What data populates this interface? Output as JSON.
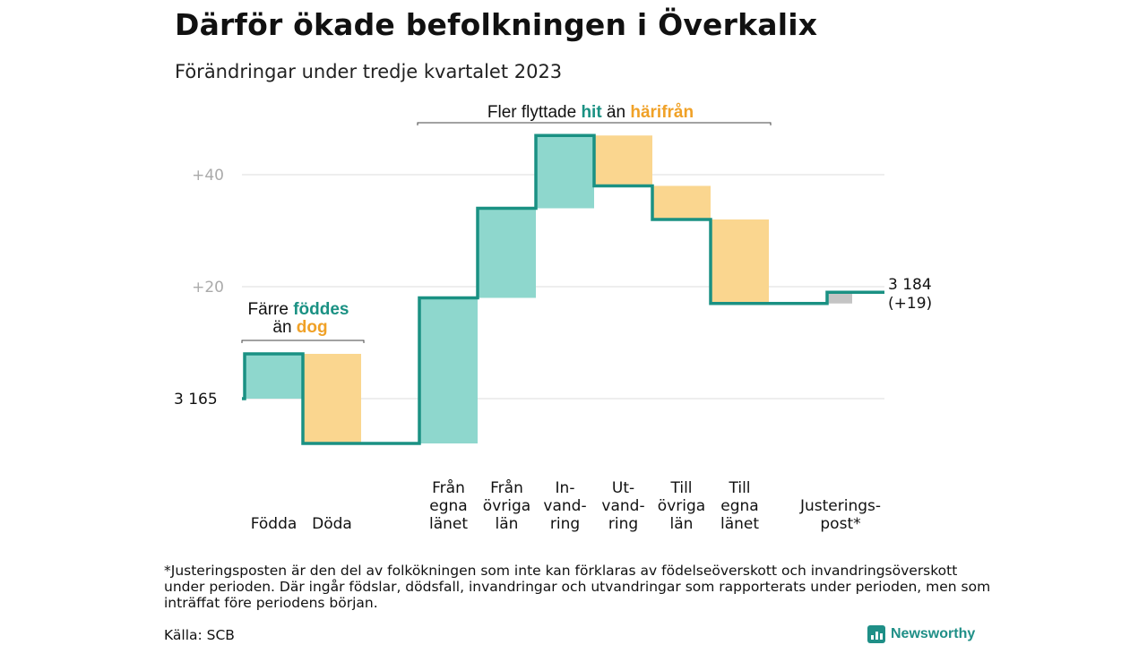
{
  "title": "Därför ökade befolkningen i Överkalix",
  "subtitle": "Förändringar under tredje kvartalet 2023",
  "chart_data": {
    "type": "waterfall",
    "start_value": 3165,
    "start_label": "3  165",
    "end_label_lines": [
      "3 184",
      "(+19)"
    ],
    "yticks": [
      {
        "value": 40,
        "label": "+40"
      },
      {
        "value": 20,
        "label": "+20"
      }
    ],
    "steps": [
      {
        "label_lines": [
          "Födda"
        ],
        "value": 8,
        "kind": "in"
      },
      {
        "label_lines": [
          "Döda"
        ],
        "value": -16,
        "kind": "out"
      },
      {
        "label_lines": [
          "Från",
          "egna",
          "länet"
        ],
        "value": 26,
        "kind": "in"
      },
      {
        "label_lines": [
          "Från",
          "övriga",
          "län"
        ],
        "value": 16,
        "kind": "in"
      },
      {
        "label_lines": [
          "In-",
          "vand-",
          "ring"
        ],
        "value": 13,
        "kind": "in"
      },
      {
        "label_lines": [
          "Ut-",
          "vand-",
          "ring"
        ],
        "value": -9,
        "kind": "out"
      },
      {
        "label_lines": [
          "Till",
          "övriga",
          "län"
        ],
        "value": -6,
        "kind": "out"
      },
      {
        "label_lines": [
          "Till",
          "egna",
          "länet"
        ],
        "value": -15,
        "kind": "out"
      },
      {
        "label_lines": [
          "Justerings-",
          "post*"
        ],
        "value": 2,
        "kind": "adj"
      }
    ],
    "annotations": [
      {
        "id": "births",
        "line1_prefix": "Färre ",
        "line1_highlight": "föddes",
        "line2_prefix": "än ",
        "line2_highlight": "dog"
      },
      {
        "id": "migration",
        "prefix": "Fler flyttade ",
        "highlight1": "hit",
        "middle": " än ",
        "highlight2": "härifrån"
      }
    ],
    "colors": {
      "in": "#8ed7cd",
      "out": "#fad68f",
      "adj": "#c4c4c4",
      "line": "#1a9183",
      "highlight_in": "#1a9183",
      "highlight_out": "#f0a127",
      "grid": "#dddddd",
      "tick": "#aaaaaa"
    }
  },
  "footnote": "*Justeringsposten är den del av folkökningen som inte kan förklaras av födelseöverskott och invandringsöverskott under perioden. Där ingår födslar, dödsfall, invandringar och utvandringar som rapporterats under perioden, men som inträffat före periodens början.",
  "source": "Källa: SCB",
  "logo": {
    "text": "Newsworthy",
    "icon": "bar-chart-icon"
  }
}
